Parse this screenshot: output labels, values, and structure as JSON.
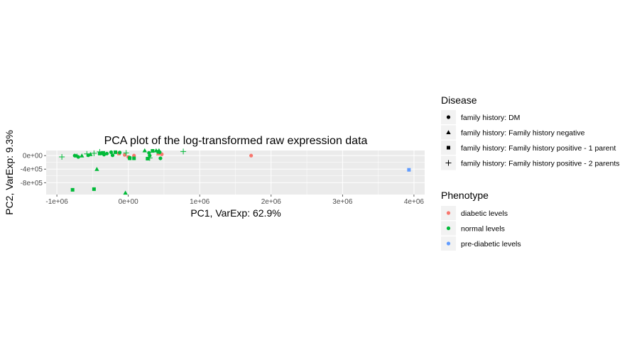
{
  "chart_data": {
    "type": "scatter",
    "title": "PCA plot of the log-transformed raw expression data",
    "xlabel": "PC1, VarExp: 62.9%",
    "ylabel": "PC2, VarExp: 9.3%",
    "xlim": [
      -1150000,
      4150000
    ],
    "ylim": [
      -1150000,
      150000
    ],
    "x_ticks": [
      {
        "value": -1000000,
        "label": "-1e+06"
      },
      {
        "value": 0,
        "label": "0e+00"
      },
      {
        "value": 1000000,
        "label": "1e+06"
      },
      {
        "value": 2000000,
        "label": "2e+06"
      },
      {
        "value": 3000000,
        "label": "3e+06"
      },
      {
        "value": 4000000,
        "label": "4e+06"
      }
    ],
    "y_ticks": [
      {
        "value": 0,
        "label": "0e+00"
      },
      {
        "value": -400000,
        "label": "-4e+05"
      },
      {
        "value": -800000,
        "label": "-8e+05"
      }
    ],
    "grid": true,
    "legends": [
      {
        "title": "Disease",
        "encoding": "shape",
        "entries": [
          {
            "label": "family history: DM",
            "shape": "circle"
          },
          {
            "label": "family history: Family history negative",
            "shape": "triangle"
          },
          {
            "label": "family history: Family history positive - 1 parent",
            "shape": "square"
          },
          {
            "label": "family history: Family history positive - 2 parents",
            "shape": "plus"
          }
        ]
      },
      {
        "title": "Phenotype",
        "encoding": "color",
        "entries": [
          {
            "label": "diabetic levels",
            "color": "#F8766D"
          },
          {
            "label": "normal levels",
            "color": "#00BA38"
          },
          {
            "label": "pre-diabetic levels",
            "color": "#619CFF"
          }
        ]
      }
    ],
    "legend_position": "right",
    "points": [
      {
        "x": 1720000,
        "y": 0,
        "shape": "circle",
        "color": "#F8766D"
      },
      {
        "x": 470000,
        "y": 40000,
        "shape": "circle",
        "color": "#F8766D"
      },
      {
        "x": -50000,
        "y": 20000,
        "shape": "circle",
        "color": "#F8766D"
      },
      {
        "x": 0,
        "y": -40000,
        "shape": "circle",
        "color": "#F8766D"
      },
      {
        "x": 80000,
        "y": 0,
        "shape": "circle",
        "color": "#F8766D"
      },
      {
        "x": -130000,
        "y": 60000,
        "shape": "square",
        "color": "#F8766D"
      },
      {
        "x": 420000,
        "y": 60000,
        "shape": "triangle",
        "color": "#F8766D"
      },
      {
        "x": 3930000,
        "y": -420000,
        "shape": "square",
        "color": "#619CFF"
      },
      {
        "x": -750000,
        "y": 0,
        "shape": "circle",
        "color": "#00BA38"
      },
      {
        "x": -700000,
        "y": -40000,
        "shape": "circle",
        "color": "#00BA38"
      },
      {
        "x": -560000,
        "y": 10000,
        "shape": "circle",
        "color": "#00BA38"
      },
      {
        "x": -340000,
        "y": 30000,
        "shape": "circle",
        "color": "#00BA38"
      },
      {
        "x": -300000,
        "y": 60000,
        "shape": "circle",
        "color": "#00BA38"
      },
      {
        "x": -240000,
        "y": 100000,
        "shape": "circle",
        "color": "#00BA38"
      },
      {
        "x": -220000,
        "y": 10000,
        "shape": "circle",
        "color": "#00BA38"
      },
      {
        "x": -120000,
        "y": 90000,
        "shape": "circle",
        "color": "#00BA38"
      },
      {
        "x": 20000,
        "y": -60000,
        "shape": "circle",
        "color": "#00BA38"
      },
      {
        "x": 290000,
        "y": 80000,
        "shape": "circle",
        "color": "#00BA38"
      },
      {
        "x": 300000,
        "y": 0,
        "shape": "circle",
        "color": "#00BA38"
      },
      {
        "x": 440000,
        "y": 100000,
        "shape": "circle",
        "color": "#00BA38"
      },
      {
        "x": 450000,
        "y": -80000,
        "shape": "circle",
        "color": "#00BA38"
      },
      {
        "x": -720000,
        "y": 0,
        "shape": "triangle",
        "color": "#00BA38"
      },
      {
        "x": -650000,
        "y": 0,
        "shape": "triangle",
        "color": "#00BA38"
      },
      {
        "x": -530000,
        "y": 40000,
        "shape": "triangle",
        "color": "#00BA38"
      },
      {
        "x": -440000,
        "y": -400000,
        "shape": "triangle",
        "color": "#00BA38"
      },
      {
        "x": -380000,
        "y": 70000,
        "shape": "triangle",
        "color": "#00BA38"
      },
      {
        "x": -40000,
        "y": -1100000,
        "shape": "triangle",
        "color": "#00BA38"
      },
      {
        "x": 230000,
        "y": 150000,
        "shape": "triangle",
        "color": "#00BA38"
      },
      {
        "x": 390000,
        "y": 150000,
        "shape": "triangle",
        "color": "#00BA38"
      },
      {
        "x": 430000,
        "y": 150000,
        "shape": "triangle",
        "color": "#00BA38"
      },
      {
        "x": -780000,
        "y": -1010000,
        "shape": "square",
        "color": "#00BA38"
      },
      {
        "x": -480000,
        "y": -990000,
        "shape": "square",
        "color": "#00BA38"
      },
      {
        "x": -400000,
        "y": 60000,
        "shape": "square",
        "color": "#00BA38"
      },
      {
        "x": -350000,
        "y": 80000,
        "shape": "square",
        "color": "#00BA38"
      },
      {
        "x": -180000,
        "y": 100000,
        "shape": "square",
        "color": "#00BA38"
      },
      {
        "x": 20000,
        "y": -80000,
        "shape": "square",
        "color": "#00BA38"
      },
      {
        "x": 80000,
        "y": -80000,
        "shape": "square",
        "color": "#00BA38"
      },
      {
        "x": 270000,
        "y": -90000,
        "shape": "square",
        "color": "#00BA38"
      },
      {
        "x": 340000,
        "y": 140000,
        "shape": "square",
        "color": "#00BA38"
      },
      {
        "x": 420000,
        "y": 110000,
        "shape": "square",
        "color": "#00BA38"
      },
      {
        "x": -930000,
        "y": -40000,
        "shape": "plus",
        "color": "#00BA38"
      },
      {
        "x": -580000,
        "y": 50000,
        "shape": "plus",
        "color": "#00BA38"
      },
      {
        "x": -480000,
        "y": 70000,
        "shape": "plus",
        "color": "#00BA38"
      },
      {
        "x": -400000,
        "y": 110000,
        "shape": "plus",
        "color": "#00BA38"
      },
      {
        "x": -30000,
        "y": 80000,
        "shape": "plus",
        "color": "#00BA38"
      },
      {
        "x": 300000,
        "y": -70000,
        "shape": "plus",
        "color": "#00BA38"
      },
      {
        "x": 770000,
        "y": 120000,
        "shape": "plus",
        "color": "#00BA38"
      }
    ]
  }
}
